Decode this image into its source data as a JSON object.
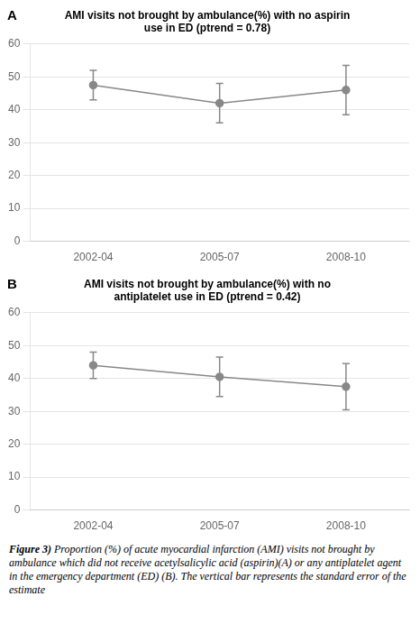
{
  "chart_data": [
    {
      "type": "line",
      "panel_label": "A",
      "title": [
        "AMI visits not brought by ambulance(%) with no aspirin",
        "use in ED (ptrend = 0.78)"
      ],
      "categories": [
        "2002-04",
        "2005-07",
        "2008-10"
      ],
      "values": [
        47.5,
        42.0,
        46.0
      ],
      "err_plus": [
        4.5,
        6.0,
        7.5
      ],
      "err_minus": [
        4.5,
        6.0,
        7.5
      ],
      "color": "#888888",
      "marker": "circle",
      "line_style": "solid",
      "ylim": [
        0,
        60
      ],
      "yticks": [
        0,
        10,
        20,
        30,
        40,
        50,
        60
      ],
      "grid": "y"
    },
    {
      "type": "line",
      "panel_label": "B",
      "title": [
        "AMI visits not brought by ambulance(%) with no",
        "antiplatelet use in ED (ptrend = 0.42)"
      ],
      "categories": [
        "2002-04",
        "2005-07",
        "2008-10"
      ],
      "values": [
        44.0,
        40.5,
        37.5
      ],
      "err_plus": [
        4.0,
        6.0,
        7.0
      ],
      "err_minus": [
        4.0,
        6.0,
        7.0
      ],
      "color": "#888888",
      "marker": "circle",
      "line_style": "solid",
      "ylim": [
        0,
        60
      ],
      "yticks": [
        0,
        10,
        20,
        30,
        40,
        50,
        60
      ],
      "grid": "y"
    }
  ],
  "caption": [
    "Figure 3)",
    "Proportion (%) of acute myocardial infarction (AMI) visits not brought by ambulance which did not receive acetylsalicylic acid (aspirin)(A) or any antiplatelet agent in the emergency department (ED) (B). The vertical bar represents the standard error of the estimate"
  ]
}
